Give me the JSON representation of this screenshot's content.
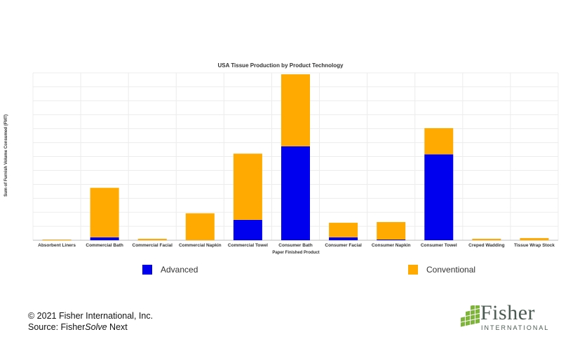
{
  "chart_data": {
    "type": "bar",
    "stacked": true,
    "title": "USA Tissue Production by Product Technology",
    "xlabel": "Paper Finished Product",
    "ylabel": "Sum of Furnish Volume Consumed (FMT)",
    "ylim": [
      0,
      115
    ],
    "grid": true,
    "legend_position": "bottom",
    "categories": [
      "Absorbent Liners",
      "Commercial Bath",
      "Commercial Facial",
      "Commercial Napkin",
      "Commercial Towel",
      "Consumer Bath",
      "Consumer Facial",
      "Consumer Napkin",
      "Consumer Towel",
      "Creped Wadding",
      "Tissue Wrap Stock"
    ],
    "series": [
      {
        "name": "Advanced",
        "color": "#0000ee",
        "values": [
          0,
          2,
          0,
          0,
          14,
          64.5,
          2,
          0.5,
          59,
          0,
          0
        ]
      },
      {
        "name": "Conventional",
        "color": "#ffaa00",
        "values": [
          0.5,
          34,
          1,
          18.5,
          45.5,
          49.5,
          10,
          12,
          18,
          1,
          1.5
        ]
      }
    ]
  },
  "footer": {
    "copyright": "© 2021 Fisher International, Inc.",
    "source_prefix": "Source: Fisher",
    "source_italic": "Solve",
    "source_suffix": " Next"
  },
  "logo": {
    "name": "Fisher",
    "subtitle": "INTERNATIONAL",
    "color": "#4a5a52",
    "mark_color": "#7fb43a"
  }
}
